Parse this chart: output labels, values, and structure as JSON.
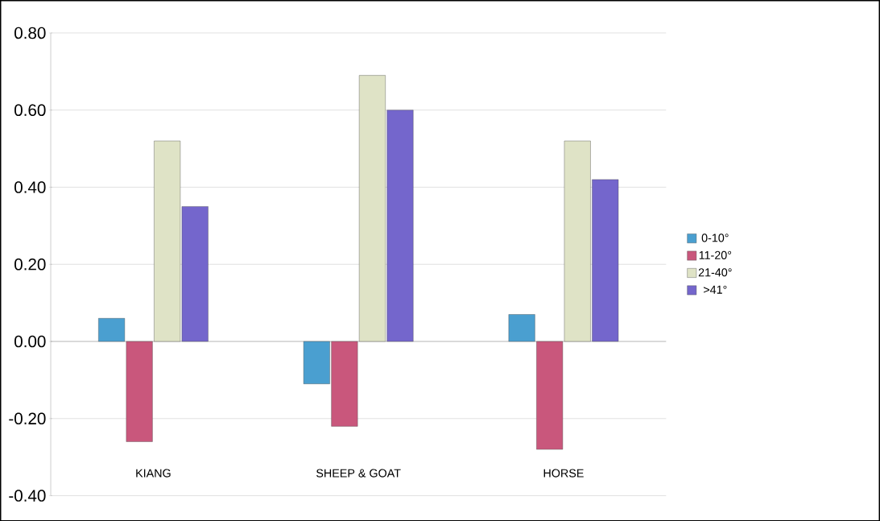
{
  "chart_data": {
    "type": "bar",
    "categories": [
      "KIANG",
      "SHEEP & GOAT",
      "HORSE"
    ],
    "series": [
      {
        "name": "0-10°",
        "color": "#4a9fd0",
        "values": [
          0.06,
          -0.11,
          0.07
        ]
      },
      {
        "name": "11-20°",
        "color": "#c9577c",
        "values": [
          -0.26,
          -0.22,
          -0.28
        ]
      },
      {
        "name": "21-40°",
        "color": "#dfe3c6",
        "values": [
          0.52,
          0.69,
          0.52
        ]
      },
      {
        "name": ">41°",
        "color": "#7466cc",
        "values": [
          0.35,
          0.6,
          0.42
        ]
      }
    ],
    "ylim": [
      -0.4,
      0.8
    ],
    "yticks": [
      {
        "value": -0.4,
        "label": "-0.40"
      },
      {
        "value": -0.2,
        "label": "-0.20"
      },
      {
        "value": 0,
        "label": "0.00"
      },
      {
        "value": 0.2,
        "label": "0.20"
      },
      {
        "value": 0.4,
        "label": "0.40"
      },
      {
        "value": 0.6,
        "label": "0.60"
      },
      {
        "value": 0.8,
        "label": "0.80"
      }
    ],
    "grid": "y",
    "legend": "right"
  }
}
